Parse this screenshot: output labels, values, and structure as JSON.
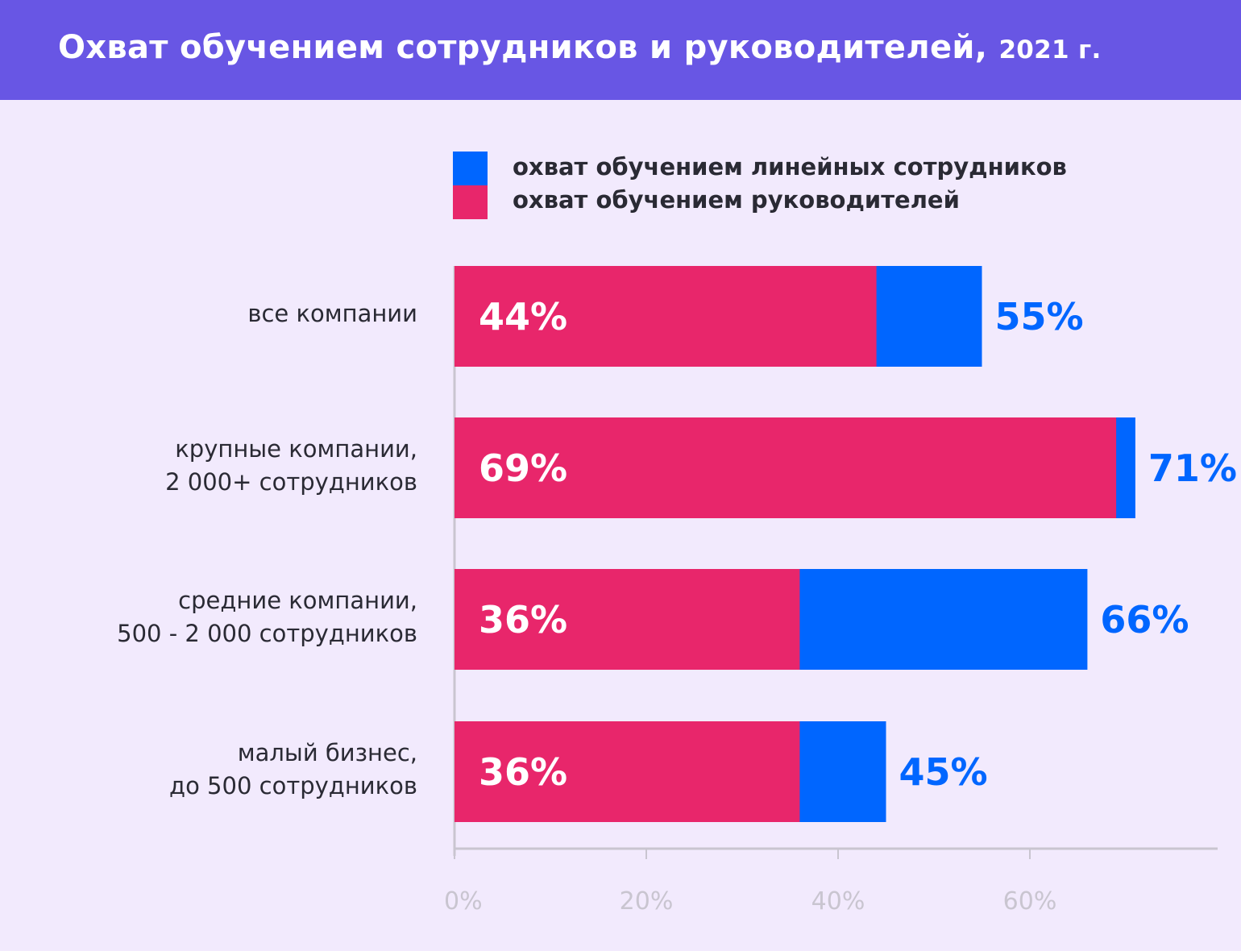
{
  "chart_data": {
    "type": "bar",
    "orientation": "horizontal",
    "overlapping": true,
    "title": "Охват обучением сотрудников и руководителей,",
    "title_year": "2021 г.",
    "categories": [
      [
        "все компании"
      ],
      [
        "крупные компании,",
        "2 000+ сотрудников"
      ],
      [
        "средние компании,",
        "500 - 2 000 сотрудников"
      ],
      [
        "малый бизнес,",
        "до 500 сотрудников"
      ]
    ],
    "series": [
      {
        "name": "охват обучением линейных сотрудников",
        "color": "#0066ff",
        "values": [
          55,
          71,
          66,
          45
        ],
        "labels": [
          "55%",
          "71%",
          "66%",
          "45%"
        ]
      },
      {
        "name": "охват обучением руководителей",
        "color": "#e8266b",
        "values": [
          44,
          69,
          36,
          36
        ],
        "labels": [
          "44%",
          "69%",
          "36%",
          "36%"
        ]
      }
    ],
    "xlim": [
      0,
      80
    ],
    "xticks": [
      0,
      20,
      40,
      60
    ],
    "xtick_labels": [
      "0%",
      "20%",
      "40%",
      "60%"
    ],
    "grid": false,
    "legend_position": "top"
  },
  "colors": {
    "header": "#6856e4",
    "background": "#f2eafd"
  }
}
